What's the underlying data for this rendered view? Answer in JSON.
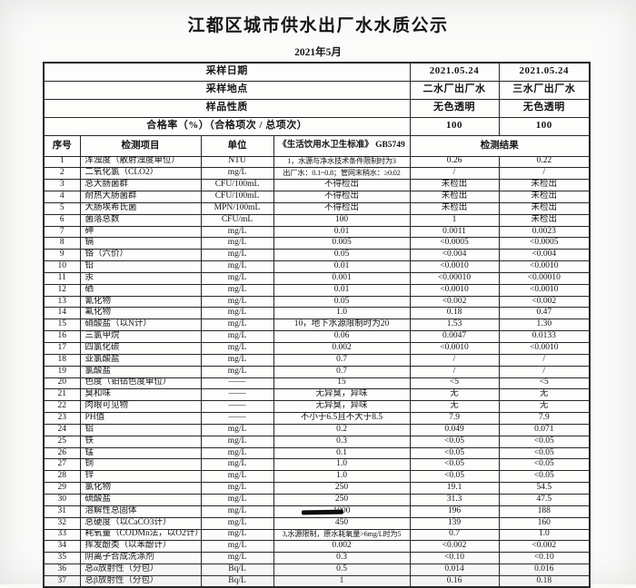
{
  "title": "江都区城市供水出厂水水质公示",
  "subtitle": "2021年5月",
  "colors": {
    "paper": "#fbfbfa",
    "ink": "#141414",
    "border": "#262626"
  },
  "info_rows": [
    {
      "label": "采样日期",
      "values": [
        "2021.05.24",
        "2021.05.24"
      ]
    },
    {
      "label": "采样地点",
      "values": [
        "二水厂出厂水",
        "三水厂出厂水"
      ]
    },
    {
      "label": "样品性质",
      "values": [
        "无色透明",
        "无色透明"
      ]
    },
    {
      "label": "合格率（%）（合格项次 / 总项次）",
      "values": [
        "100",
        "100"
      ]
    }
  ],
  "columns": {
    "seq": "序号",
    "item": "检测项目",
    "unit": "单位",
    "standard": "《生活饮用水卫生标准》 GB5749",
    "result": "检测结果"
  },
  "rows": [
    [
      "1",
      "浑浊度（散射浊度单位）",
      "NTU",
      "1，水源与净水技术条件限制时为3",
      "0.26",
      "0.22"
    ],
    [
      "2",
      "二氧化氯（CLO2）",
      "mg/L",
      "出厂水：0.1~0.8；管网末稍水：≥0.02",
      "/",
      "/"
    ],
    [
      "3",
      "总大肠菌群",
      "CFU/100mL",
      "不得检出",
      "未检出",
      "未检出"
    ],
    [
      "4",
      "耐热大肠菌群",
      "CFU/100mL",
      "不得检出",
      "未检出",
      "未检出"
    ],
    [
      "5",
      "大肠埃希氏菌",
      "MPN/100mL",
      "不得检出",
      "未检出",
      "未检出"
    ],
    [
      "6",
      "菌落总数",
      "CFU/mL",
      "100",
      "1",
      "未检出"
    ],
    [
      "7",
      "砷",
      "mg/L",
      "0.01",
      "0.0011",
      "0.0023"
    ],
    [
      "8",
      "镉",
      "mg/L",
      "0.005",
      "<0.0005",
      "<0.0005"
    ],
    [
      "9",
      "铬（六价）",
      "mg/L",
      "0.05",
      "<0.004",
      "<0.004"
    ],
    [
      "10",
      "铅",
      "mg/L",
      "0.01",
      "<0.0010",
      "<0.0010"
    ],
    [
      "11",
      "汞",
      "mg/L",
      "0.001",
      "<0.00010",
      "<0.00010"
    ],
    [
      "12",
      "硒",
      "mg/L",
      "0.01",
      "<0.0010",
      "<0.0010"
    ],
    [
      "13",
      "氰化物",
      "mg/L",
      "0.05",
      "<0.002",
      "<0.002"
    ],
    [
      "14",
      "氟化物",
      "mg/L",
      "1.0",
      "0.18",
      "0.47"
    ],
    [
      "15",
      "硝酸盐（以N计）",
      "mg/L",
      "10，地下水源限制时为20",
      "1.53",
      "1.30"
    ],
    [
      "16",
      "三氯甲烷",
      "mg/L",
      "0.06",
      "0.0047",
      "0.0133"
    ],
    [
      "17",
      "四氯化碳",
      "mg/L",
      "0.002",
      "<0.0010",
      "<0.0010"
    ],
    [
      "18",
      "亚氯酸盐",
      "mg/L",
      "0.7",
      "/",
      "/"
    ],
    [
      "19",
      "氯酸盐",
      "mg/L",
      "0.7",
      "/",
      "/"
    ],
    [
      "20",
      "色度（铂钴色度单位）",
      "——",
      "15",
      "<5",
      "<5"
    ],
    [
      "21",
      "臭和味",
      "——",
      "无异臭，异味",
      "无",
      "无"
    ],
    [
      "22",
      "肉眼可见物",
      "——",
      "无异臭，异味",
      "无",
      "无"
    ],
    [
      "23",
      "PH值",
      "——",
      "不小于6.5且不大于8.5",
      "7.9",
      "7.9"
    ],
    [
      "24",
      "铝",
      "mg/L",
      "0.2",
      "0.049",
      "0.071"
    ],
    [
      "25",
      "铁",
      "mg/L",
      "0.3",
      "<0.05",
      "<0.05"
    ],
    [
      "26",
      "锰",
      "mg/L",
      "0.1",
      "<0.05",
      "<0.05"
    ],
    [
      "27",
      "铜",
      "mg/L",
      "1.0",
      "<0.05",
      "<0.05"
    ],
    [
      "28",
      "锌",
      "mg/L",
      "1.0",
      "<0.05",
      "<0.05"
    ],
    [
      "29",
      "氯化物",
      "mg/L",
      "250",
      "19.1",
      "54.5"
    ],
    [
      "30",
      "硫酸盐",
      "mg/L",
      "250",
      "31.3",
      "47.5"
    ],
    [
      "31",
      "溶解性总固体",
      "mg/L",
      "1000",
      "196",
      "188"
    ],
    [
      "32",
      "总硬度（以CaCO3计）",
      "mg/L",
      "450",
      "139",
      "160"
    ],
    [
      "33",
      "耗氧量（CODMn法，以O2计）",
      "mg/L",
      "3,水源限制，原水耗氧量>6mg/L时为5",
      "0.7",
      "1.0"
    ],
    [
      "34",
      "挥发酚类（以苯酚计）",
      "mg/L",
      "0.002",
      "<0.002",
      "<0.002"
    ],
    [
      "35",
      "阴离子合成洗涤剂",
      "mg/L",
      "0.3",
      "<0.10",
      "<0.10"
    ],
    [
      "36",
      "总α放射性（分包）",
      "Bq/L",
      "0.5",
      "0.014",
      "0.016"
    ],
    [
      "37",
      "总β放射性（分包）",
      "Bq/L",
      "1",
      "0.16",
      "0.18"
    ]
  ]
}
